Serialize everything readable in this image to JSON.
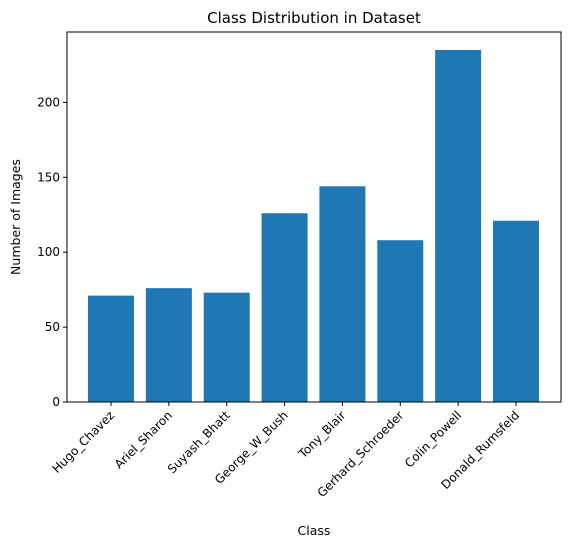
{
  "chart_data": {
    "type": "bar",
    "title": "Class Distribution in Dataset",
    "xlabel": "Class",
    "ylabel": "Number of Images",
    "categories": [
      "Hugo_Chavez",
      "Ariel_Sharon",
      "Suyash_Bhatt",
      "George_W_Bush",
      "Tony_Blair",
      "Gerhard_Schroeder",
      "Colin_Powell",
      "Donald_Rumsfeld"
    ],
    "values": [
      71,
      76,
      73,
      126,
      144,
      108,
      235,
      121
    ],
    "ylim": [
      0,
      247
    ],
    "yticks": [
      0,
      50,
      100,
      150,
      200
    ],
    "grid": false,
    "bar_color": "#1f77b4"
  }
}
